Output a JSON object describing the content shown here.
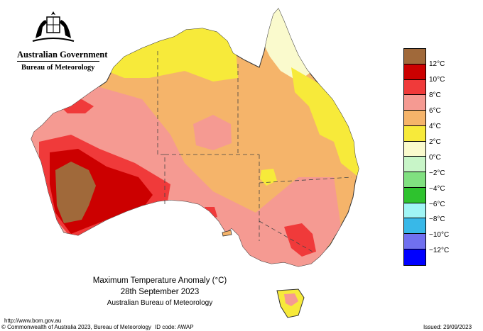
{
  "header": {
    "government": "Australian Government",
    "agency": "Bureau of Meteorology"
  },
  "title": {
    "line1": "Maximum Temperature Anomaly (°C)",
    "date": "28th September 2023",
    "source": "Australian Bureau of Meteorology"
  },
  "legend": {
    "items": [
      {
        "label": "",
        "color": "#a0693a"
      },
      {
        "label": "12°C",
        "color": "#cc0000"
      },
      {
        "label": "10°C",
        "color": "#f03a3a"
      },
      {
        "label": "8°C",
        "color": "#f59a92"
      },
      {
        "label": "6°C",
        "color": "#f5b46a"
      },
      {
        "label": "4°C",
        "color": "#f7ea3a"
      },
      {
        "label": "2°C",
        "color": "#fafacd"
      },
      {
        "label": "0°C",
        "color": "#c8f5c8"
      },
      {
        "label": "−2°C",
        "color": "#80e080"
      },
      {
        "label": "−4°C",
        "color": "#2ec22e"
      },
      {
        "label": "−6°C",
        "color": "#a0f5f5"
      },
      {
        "label": "−8°C",
        "color": "#38b8e8"
      },
      {
        "label": "−10°C",
        "color": "#7070f0"
      },
      {
        "label": "−12°C",
        "color": "#0000ff"
      }
    ]
  },
  "footer": {
    "url": "http://www.bom.gov.au",
    "copyright": "© Commonwealth of Australia 2023, Bureau of Meteorology",
    "id_code": "ID code: AWAP",
    "issued": "Issued: 29/09/2023"
  }
}
